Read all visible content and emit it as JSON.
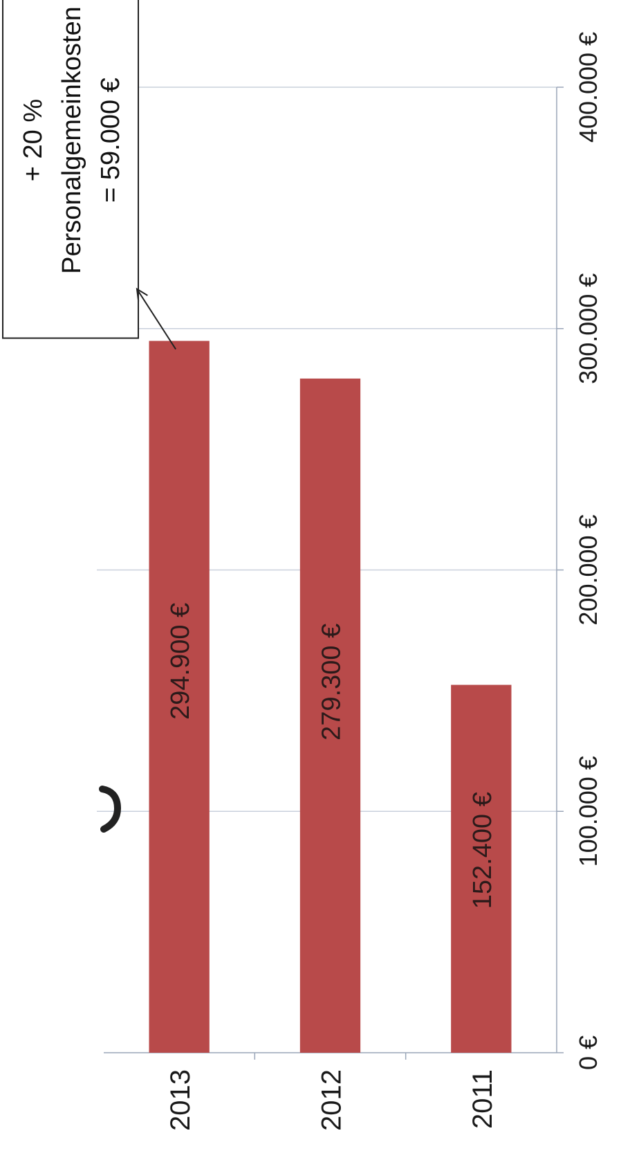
{
  "chart_data": {
    "type": "bar",
    "orientation": "horizontal",
    "rotation": "image rotated 90° counter-clockwise",
    "categories": [
      "2013",
      "2012",
      "2011"
    ],
    "values": [
      294900,
      279300,
      152400
    ],
    "data_labels": [
      "294.900 €",
      "279.300 €",
      "152.400 €"
    ],
    "ticks": [
      0,
      100000,
      200000,
      300000,
      400000
    ],
    "tick_labels": [
      "0 €",
      "100.000 €",
      "200.000 €",
      "300.000 €",
      "400.000 €"
    ],
    "xlim": [
      0,
      400000
    ],
    "grid": true,
    "bar_color": "#b84a4a",
    "annotation": {
      "lines": [
        "+ 20 %",
        "Personalgemeinkosten",
        "= 59.000 €"
      ],
      "points_to": "2013"
    }
  }
}
